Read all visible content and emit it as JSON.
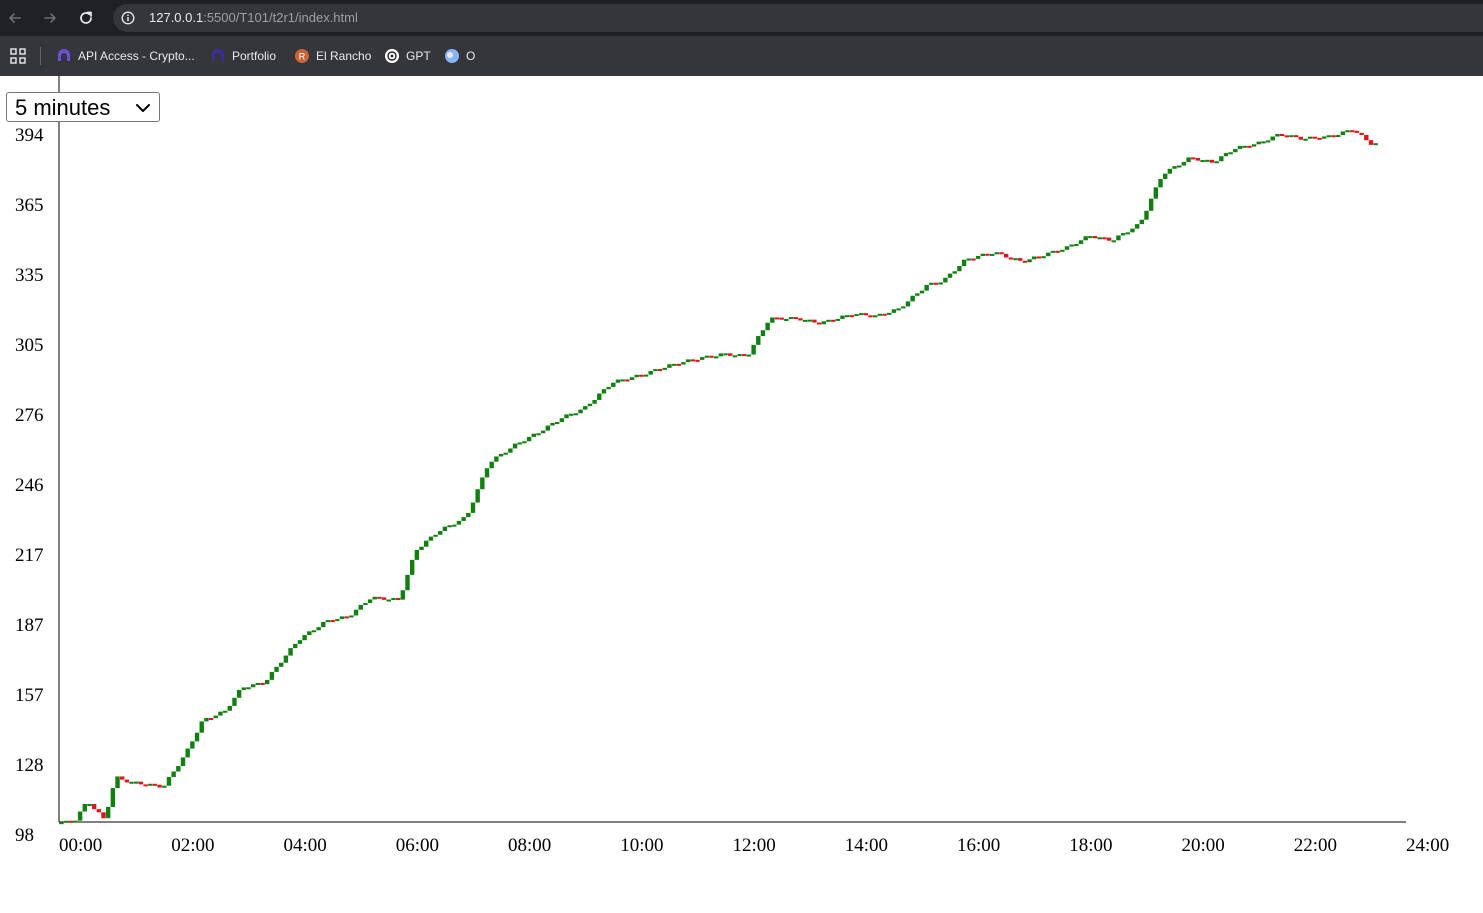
{
  "browser": {
    "url_host": "127.0.0.1",
    "url_rest": ":5500/T101/t2r1/index.html",
    "bookmarks": [
      {
        "label": "API Access - Crypto...",
        "icon": "coin-logo-icon"
      },
      {
        "label": "Portfolio",
        "icon": "coin-logo-icon"
      },
      {
        "label": "El Rancho",
        "icon": "r-logo-icon"
      },
      {
        "label": "GPT",
        "icon": "openai-logo-icon"
      },
      {
        "label": "O",
        "icon": "globe-logo-icon"
      }
    ]
  },
  "timeframe": {
    "selected": "5 minutes"
  },
  "colors": {
    "up": "#118011",
    "down": "#e0151b",
    "axis": "#000000"
  },
  "chart_data": {
    "type": "candlestick",
    "x_unit": "hours",
    "xlim": [
      0,
      24
    ],
    "ylim": [
      98,
      394
    ],
    "y_ticks": [
      "394",
      "365",
      "335",
      "305",
      "276",
      "246",
      "217",
      "187",
      "157",
      "128",
      "98"
    ],
    "x_ticks": [
      "00:00",
      "02:00",
      "04:00",
      "06:00",
      "08:00",
      "10:00",
      "12:00",
      "14:00",
      "16:00",
      "18:00",
      "20:00",
      "22:00",
      "24:00"
    ],
    "anchors": [
      [
        0,
        103
      ],
      [
        0.3,
        103
      ],
      [
        0.55,
        112
      ],
      [
        0.85,
        104
      ],
      [
        1.05,
        122
      ],
      [
        1.3,
        120
      ],
      [
        1.6,
        119
      ],
      [
        1.9,
        118
      ],
      [
        2.3,
        132
      ],
      [
        2.6,
        146
      ],
      [
        3.0,
        150
      ],
      [
        3.3,
        160
      ],
      [
        3.7,
        162
      ],
      [
        4.3,
        180
      ],
      [
        4.8,
        188
      ],
      [
        5.2,
        190
      ],
      [
        5.6,
        198
      ],
      [
        6.1,
        197
      ],
      [
        6.4,
        218
      ],
      [
        6.8,
        226
      ],
      [
        7.3,
        232
      ],
      [
        7.7,
        255
      ],
      [
        8.2,
        263
      ],
      [
        8.6,
        268
      ],
      [
        9.0,
        274
      ],
      [
        9.4,
        278
      ],
      [
        9.9,
        289
      ],
      [
        10.4,
        292
      ],
      [
        10.9,
        296
      ],
      [
        11.4,
        299
      ],
      [
        11.9,
        301
      ],
      [
        12.3,
        300
      ],
      [
        12.7,
        316
      ],
      [
        13.2,
        316
      ],
      [
        13.6,
        314
      ],
      [
        14.2,
        318
      ],
      [
        14.6,
        317
      ],
      [
        15.0,
        320
      ],
      [
        15.5,
        330
      ],
      [
        15.8,
        332
      ],
      [
        16.2,
        341
      ],
      [
        16.7,
        344
      ],
      [
        17.2,
        340
      ],
      [
        17.6,
        343
      ],
      [
        18.0,
        346
      ],
      [
        18.4,
        351
      ],
      [
        18.8,
        349
      ],
      [
        19.3,
        356
      ],
      [
        19.7,
        377
      ],
      [
        20.2,
        384
      ],
      [
        20.6,
        382
      ],
      [
        21.0,
        388
      ],
      [
        21.4,
        390
      ],
      [
        21.8,
        394
      ],
      [
        22.2,
        392
      ],
      [
        22.7,
        393
      ],
      [
        23.1,
        396
      ],
      [
        23.4,
        390
      ]
    ]
  }
}
